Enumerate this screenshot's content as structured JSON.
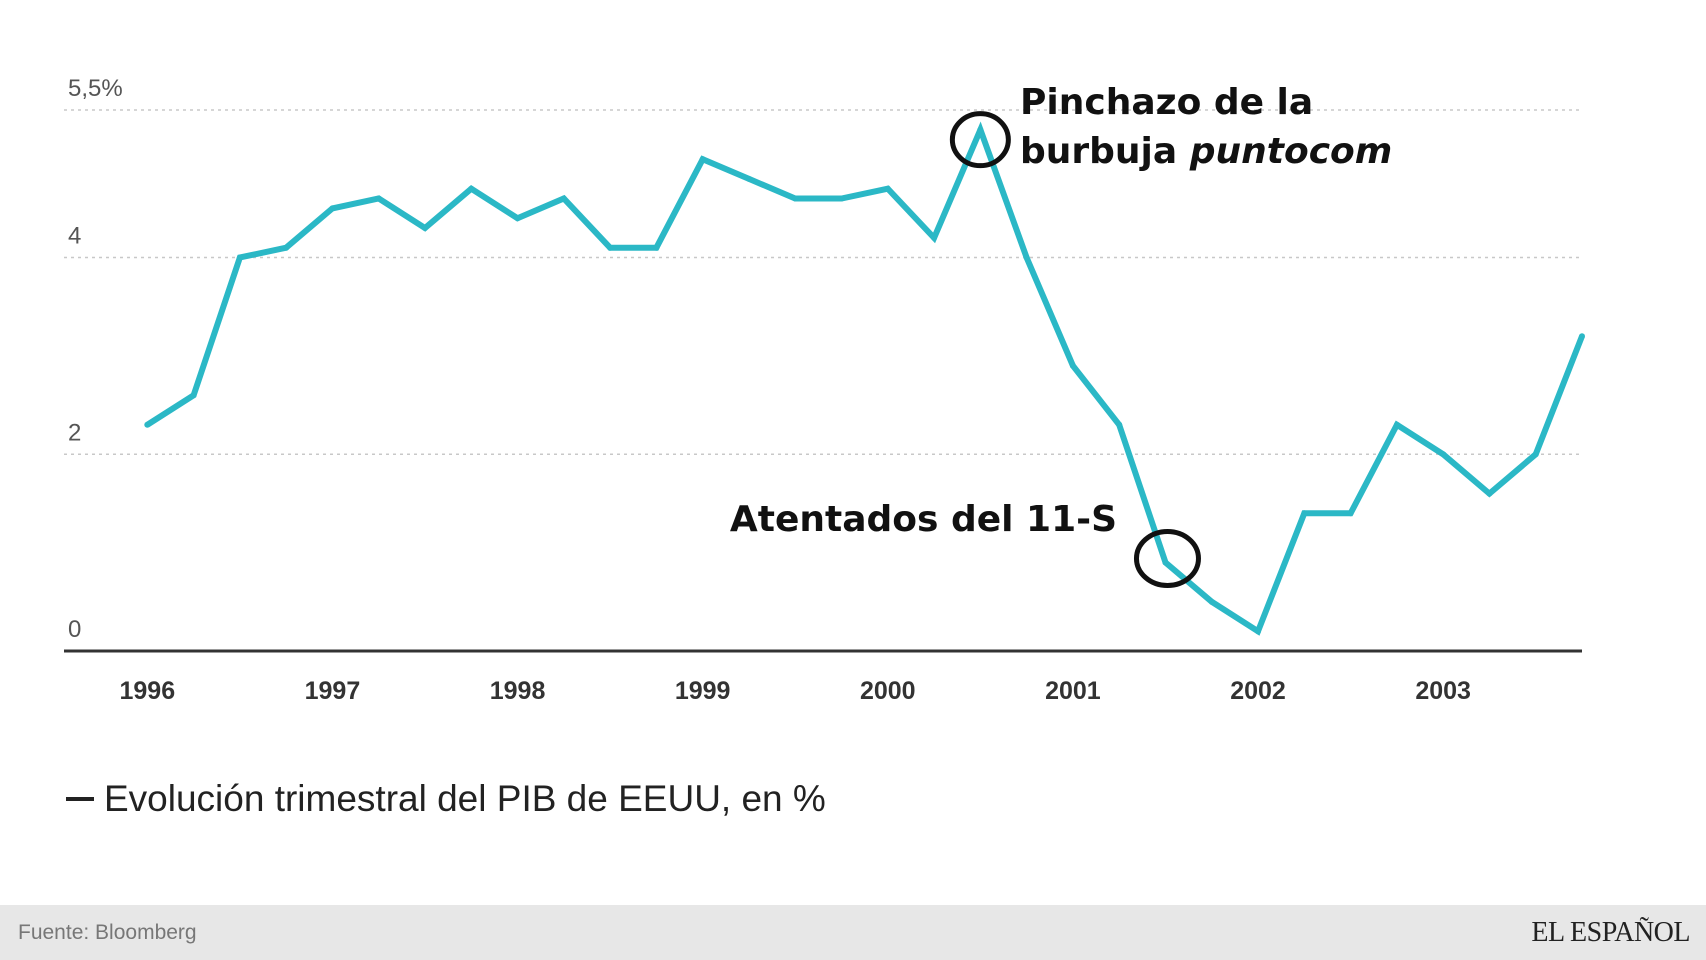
{
  "chart_data": {
    "type": "line",
    "title": "",
    "xlabel": "",
    "ylabel": "",
    "ylim": [
      0,
      5.5
    ],
    "y_ticks": [
      {
        "value": 0,
        "label": "0"
      },
      {
        "value": 2,
        "label": "2"
      },
      {
        "value": 4,
        "label": "4"
      },
      {
        "value": 5.5,
        "label": "5,5%"
      }
    ],
    "x_ticks": [
      {
        "value": 1996.0,
        "label": "1996"
      },
      {
        "value": 1997.0,
        "label": "1997"
      },
      {
        "value": 1998.0,
        "label": "1998"
      },
      {
        "value": 1999.0,
        "label": "1999"
      },
      {
        "value": 2000.0,
        "label": "2000"
      },
      {
        "value": 2001.0,
        "label": "2001"
      },
      {
        "value": 2002.0,
        "label": "2002"
      },
      {
        "value": 2003.0,
        "label": "2003"
      }
    ],
    "xlim": [
      1995.55,
      2003.75
    ],
    "grid": true,
    "series": [
      {
        "name": "Evolución trimestral del PIB de EEUU, en %",
        "color": "#2bb8c6",
        "x": [
          1996.0,
          1996.25,
          1996.5,
          1996.75,
          1997.0,
          1997.25,
          1997.5,
          1997.75,
          1998.0,
          1998.25,
          1998.5,
          1998.75,
          1999.0,
          1999.25,
          1999.5,
          1999.75,
          2000.0,
          2000.25,
          2000.5,
          2000.75,
          2001.0,
          2001.25,
          2001.5,
          2001.75,
          2002.0,
          2002.25,
          2002.5,
          2002.75,
          2003.0,
          2003.25,
          2003.5,
          2003.75
        ],
        "values": [
          2.3,
          2.6,
          4.0,
          4.1,
          4.5,
          4.6,
          4.3,
          4.7,
          4.4,
          4.6,
          4.1,
          4.1,
          5.0,
          4.8,
          4.6,
          4.6,
          4.7,
          4.2,
          5.3,
          4.0,
          2.9,
          2.3,
          0.9,
          0.5,
          0.2,
          1.4,
          1.4,
          2.3,
          2.0,
          1.6,
          2.0,
          3.2
        ]
      }
    ],
    "annotations": [
      {
        "lines": [
          "Pinchazo de la",
          "burbuja "
        ],
        "italic_part": "puntocom",
        "x": 2000.5,
        "y": 5.3
      },
      {
        "lines": [
          "Atentados del 11-S"
        ],
        "x": 2001.5,
        "y": 0.9
      }
    ],
    "legend": {
      "label": "Evolución trimestral del PIB de EEUU, en %",
      "placement": "bottom-left"
    }
  },
  "footer": {
    "source": "Fuente: Bloomberg",
    "brand": "EL ESPAÑOL"
  }
}
